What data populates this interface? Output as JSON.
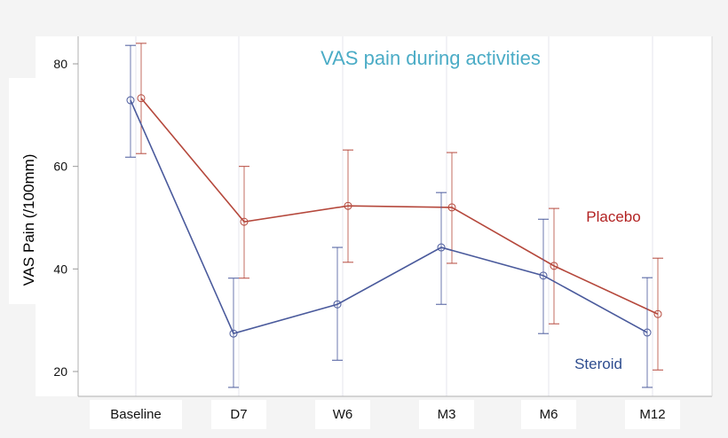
{
  "chart_data": {
    "type": "line",
    "title": "VAS pain during activities",
    "xlabel": "",
    "ylabel": "VAS Pain (/100mm)",
    "categories": [
      "Baseline",
      "D7",
      "W6",
      "M3",
      "M6",
      "M12"
    ],
    "yticks": [
      20,
      40,
      60,
      80
    ],
    "ylim": [
      15,
      86
    ],
    "grid": "vertical",
    "series": [
      {
        "name": "Placebo",
        "color": "#b5483c",
        "label_color": "#b22222",
        "values": [
          73.3,
          49.2,
          52.3,
          52.0,
          40.6,
          31.2
        ],
        "lower": [
          62.5,
          38.2,
          41.3,
          41.1,
          29.3,
          20.3
        ],
        "upper": [
          84.0,
          60.0,
          63.2,
          62.7,
          51.8,
          42.1
        ]
      },
      {
        "name": "Steroid",
        "color": "#4a5a9c",
        "label_color": "#2e4d8f",
        "values": [
          72.9,
          27.4,
          33.1,
          44.2,
          38.7,
          27.6
        ],
        "lower": [
          61.8,
          16.9,
          22.2,
          33.1,
          27.4,
          16.9
        ],
        "upper": [
          83.6,
          38.2,
          44.2,
          54.9,
          49.7,
          38.3
        ]
      }
    ],
    "title_color": "#4bacc6"
  }
}
